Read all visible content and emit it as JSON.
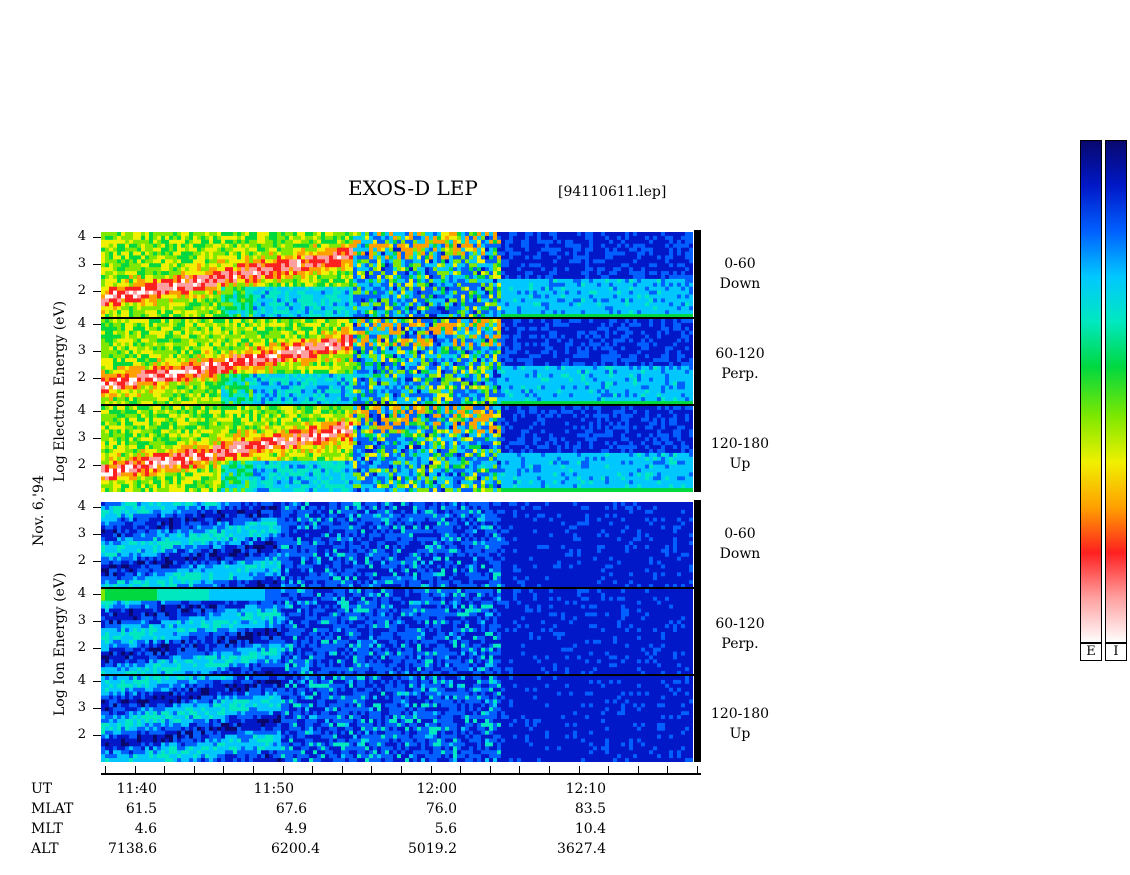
{
  "title": "EXOS-D LEP",
  "file_label": "[94110611.lep]",
  "date_label": "Nov. 6,'94",
  "chart_data": {
    "type": "heatmap",
    "electron_ylabel": "Log  Electron  Energy (eV)",
    "ion_ylabel": "Log  Ion  Energy (eV)",
    "yticks": [
      "4",
      "3",
      "2"
    ],
    "panels": [
      {
        "group": "electron",
        "angle": "0-60",
        "direction": "Down"
      },
      {
        "group": "electron",
        "angle": "60-120",
        "direction": "Perp."
      },
      {
        "group": "electron",
        "angle": "120-180",
        "direction": "Up"
      },
      {
        "group": "ion",
        "angle": "0-60",
        "direction": "Down"
      },
      {
        "group": "ion",
        "angle": "60-120",
        "direction": "Perp."
      },
      {
        "group": "ion",
        "angle": "120-180",
        "direction": "Up"
      }
    ],
    "time_labels": [
      "11:40",
      "11:50",
      "12:00",
      "12:10"
    ],
    "rows": [
      {
        "label": "UT",
        "key": "ut"
      },
      {
        "label": "MLAT",
        "values": [
          "61.5",
          "67.6",
          "76.0",
          "83.5"
        ]
      },
      {
        "label": "MLT",
        "values": [
          "4.6",
          "4.9",
          "5.6",
          "10.4"
        ]
      },
      {
        "label": "ALT",
        "values": [
          "7138.6",
          "6200.4",
          "5019.2",
          "3627.4"
        ]
      }
    ],
    "colorbar_labels": [
      "E",
      "I"
    ]
  },
  "colors": {
    "spectrum": [
      "#08086e",
      "#0018c8",
      "#0060ff",
      "#00c8ff",
      "#00e8c0",
      "#00d840",
      "#80e800",
      "#f0f000",
      "#ffa000",
      "#ff2020",
      "#ffa0a0",
      "#ffffff"
    ]
  }
}
